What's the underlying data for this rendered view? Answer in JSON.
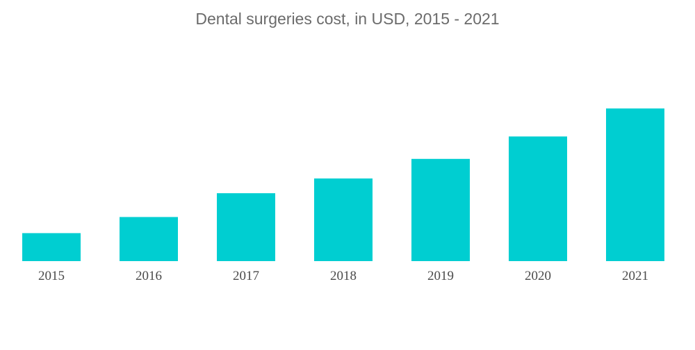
{
  "chart_data": {
    "type": "bar",
    "title": "Dental surgeries cost, in USD, 2015 - 2021",
    "xlabel": "",
    "ylabel": "",
    "categories": [
      "2015",
      "2016",
      "2017",
      "2018",
      "2019",
      "2020",
      "2021"
    ],
    "values": [
      40,
      63,
      97,
      118,
      146,
      178,
      218
    ],
    "ylim": [
      0,
      240
    ],
    "grid": false,
    "legend": "none",
    "bar_color": "#00ced1"
  }
}
